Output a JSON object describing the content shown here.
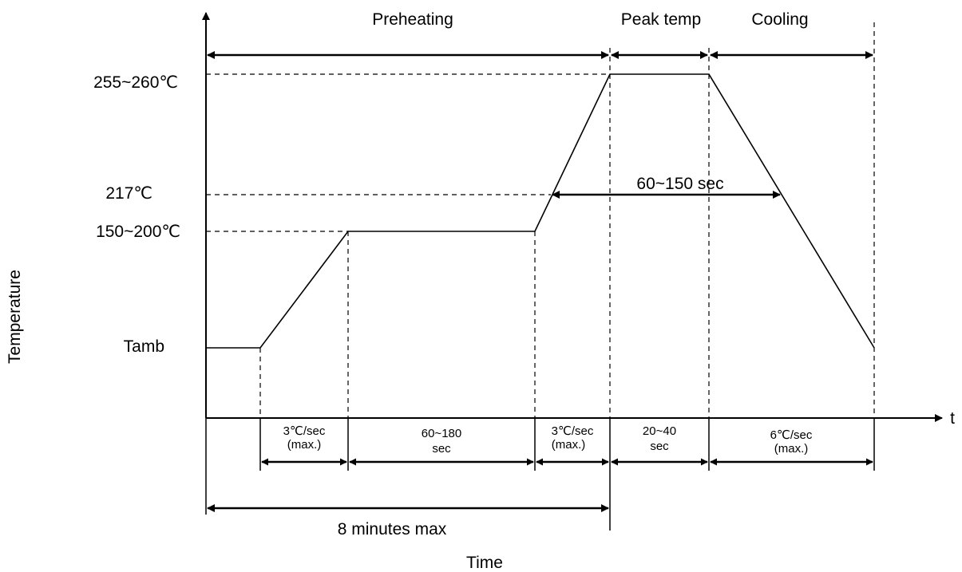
{
  "axes": {
    "x_label": "Time",
    "y_label": "Temperature",
    "x_end_label": "t"
  },
  "phases": {
    "preheating": "Preheating",
    "peak": "Peak temp",
    "cooling": "Cooling"
  },
  "temperature_levels": {
    "peak": "255~260℃",
    "liquidus": "217℃",
    "soak": "150~200℃",
    "ambient": "Tamb"
  },
  "annotations": {
    "above_liquidus": "60~150 sec",
    "total_max": "8 minutes max"
  },
  "segments": [
    {
      "line1": "3℃/sec",
      "line2": "(max.)"
    },
    {
      "line1": "60~180",
      "line2": "sec"
    },
    {
      "line1": "3℃/sec",
      "line2": "(max.)"
    },
    {
      "line1": "20~40",
      "line2": "sec"
    },
    {
      "line1": "6℃/sec",
      "line2": "(max.)"
    }
  ]
}
